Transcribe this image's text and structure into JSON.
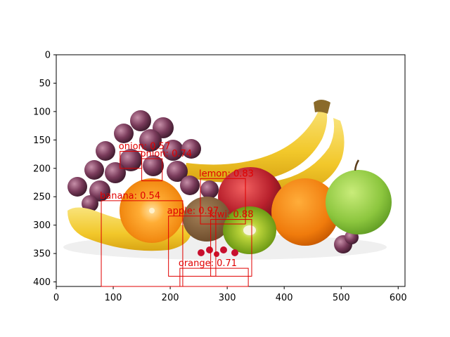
{
  "chart_data": {
    "type": "image-with-detections",
    "title": "",
    "xlabel": "",
    "ylabel": "",
    "xlim": [
      0,
      612
    ],
    "ylim": [
      408,
      0
    ],
    "xticks": [
      0,
      100,
      200,
      300,
      400,
      500,
      600
    ],
    "yticks": [
      0,
      50,
      100,
      150,
      200,
      250,
      300,
      350,
      400
    ],
    "box_color": "#e00000",
    "detections": [
      {
        "label": "onion: 0.57",
        "x1": 112,
        "y1": 170,
        "x2": 150,
        "y2": 200
      },
      {
        "label": "onion: 0.74",
        "x1": 150,
        "y1": 183,
        "x2": 186,
        "y2": 222
      },
      {
        "label": "lemon: 0.83",
        "x1": 253,
        "y1": 218,
        "x2": 332,
        "y2": 298
      },
      {
        "label": "banana: 0.54",
        "x1": 79,
        "y1": 257,
        "x2": 222,
        "y2": 408
      },
      {
        "label": "apple: 0.97",
        "x1": 197,
        "y1": 284,
        "x2": 280,
        "y2": 390
      },
      {
        "label": "kiwi: 0.88",
        "x1": 271,
        "y1": 290,
        "x2": 343,
        "y2": 390
      },
      {
        "label": "orange: 0.71",
        "x1": 217,
        "y1": 376,
        "x2": 337,
        "y2": 408
      }
    ]
  }
}
